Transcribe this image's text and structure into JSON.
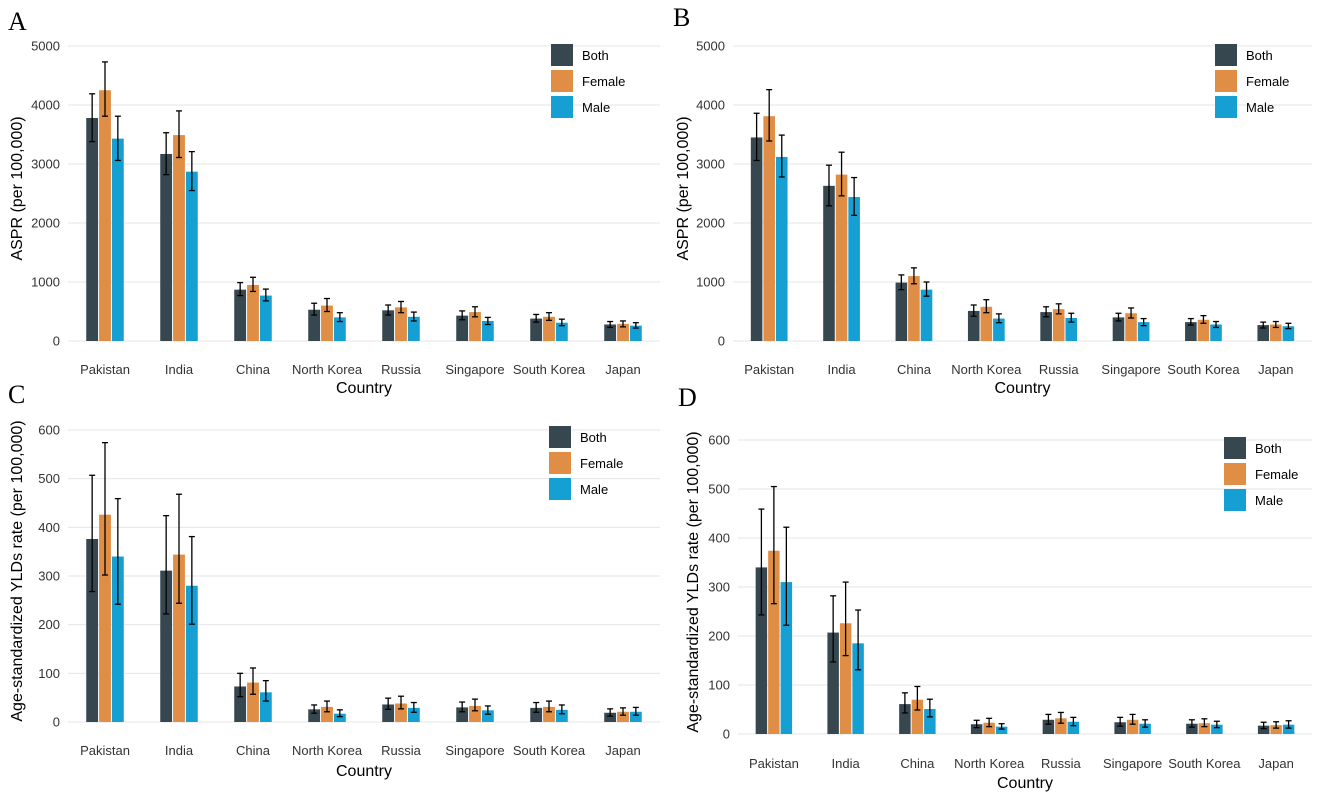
{
  "colors": {
    "Both": "#37474f",
    "Female": "#e08e45",
    "Male": "#159fd3"
  },
  "chart_data": [
    {
      "panel": "A",
      "type": "bar",
      "categories": [
        "Pakistan",
        "India",
        "China",
        "North Korea",
        "Russia",
        "Singapore",
        "South Korea",
        "Japan"
      ],
      "xlabel": "Country",
      "ylabel": "ASPR (per 100,000)",
      "ylim": [
        0,
        5000
      ],
      "yticks": [
        0,
        1000,
        2000,
        3000,
        4000,
        5000
      ],
      "legend_position": "top-right",
      "series": [
        {
          "name": "Both",
          "values": [
            3780,
            3170,
            870,
            530,
            520,
            430,
            380,
            280
          ],
          "lower": [
            3380,
            2820,
            770,
            440,
            440,
            360,
            320,
            230
          ],
          "upper": [
            4190,
            3530,
            990,
            640,
            610,
            510,
            450,
            330
          ]
        },
        {
          "name": "Female",
          "values": [
            4250,
            3490,
            950,
            600,
            570,
            490,
            410,
            290
          ],
          "lower": [
            3810,
            3110,
            840,
            500,
            480,
            410,
            350,
            240
          ],
          "upper": [
            4730,
            3900,
            1080,
            720,
            670,
            580,
            480,
            340
          ]
        },
        {
          "name": "Male",
          "values": [
            3430,
            2870,
            770,
            400,
            410,
            340,
            310,
            260
          ],
          "lower": [
            3060,
            2550,
            680,
            330,
            340,
            280,
            260,
            220
          ],
          "upper": [
            3810,
            3210,
            880,
            480,
            490,
            400,
            370,
            310
          ]
        }
      ]
    },
    {
      "panel": "B",
      "type": "bar",
      "categories": [
        "Pakistan",
        "India",
        "China",
        "North Korea",
        "Russia",
        "Singapore",
        "South Korea",
        "Japan"
      ],
      "xlabel": "Country",
      "ylabel": "ASPR (per 100,000)",
      "ylim": [
        0,
        5000
      ],
      "yticks": [
        0,
        1000,
        2000,
        3000,
        4000,
        5000
      ],
      "legend_position": "top-right",
      "series": [
        {
          "name": "Both",
          "values": [
            3450,
            2630,
            990,
            510,
            490,
            400,
            320,
            270
          ],
          "lower": [
            3060,
            2290,
            870,
            420,
            410,
            340,
            270,
            220
          ],
          "upper": [
            3860,
            2980,
            1120,
            610,
            580,
            470,
            380,
            320
          ]
        },
        {
          "name": "Female",
          "values": [
            3810,
            2820,
            1100,
            580,
            540,
            470,
            360,
            280
          ],
          "lower": [
            3390,
            2460,
            970,
            480,
            460,
            390,
            300,
            230
          ],
          "upper": [
            4260,
            3200,
            1240,
            700,
            630,
            560,
            430,
            330
          ]
        },
        {
          "name": "Male",
          "values": [
            3120,
            2440,
            870,
            380,
            390,
            320,
            280,
            250
          ],
          "lower": [
            2780,
            2130,
            760,
            310,
            320,
            260,
            230,
            210
          ],
          "upper": [
            3490,
            2770,
            1000,
            460,
            470,
            380,
            330,
            300
          ]
        }
      ]
    },
    {
      "panel": "C",
      "type": "bar",
      "categories": [
        "Pakistan",
        "India",
        "China",
        "North Korea",
        "Russia",
        "Singapore",
        "South Korea",
        "Japan"
      ],
      "xlabel": "Country",
      "ylabel": "Age-standardized YLDs rate (per 100,000)",
      "ylim": [
        0,
        600
      ],
      "yticks": [
        0,
        100,
        200,
        300,
        400,
        500,
        600
      ],
      "legend_position": "top-right",
      "series": [
        {
          "name": "Both",
          "values": [
            376,
            311,
            73,
            26,
            36,
            30,
            29,
            19
          ],
          "lower": [
            268,
            222,
            52,
            18,
            26,
            21,
            20,
            12
          ],
          "upper": [
            507,
            424,
            100,
            35,
            49,
            41,
            40,
            27
          ]
        },
        {
          "name": "Female",
          "values": [
            426,
            344,
            81,
            31,
            38,
            33,
            31,
            21
          ],
          "lower": [
            302,
            244,
            57,
            21,
            27,
            23,
            21,
            14
          ],
          "upper": [
            574,
            468,
            111,
            43,
            53,
            47,
            43,
            29
          ]
        },
        {
          "name": "Male",
          "values": [
            340,
            280,
            61,
            17,
            29,
            24,
            25,
            21
          ],
          "lower": [
            242,
            201,
            43,
            11,
            20,
            16,
            17,
            14
          ],
          "upper": [
            459,
            381,
            85,
            25,
            40,
            33,
            35,
            30
          ]
        }
      ]
    },
    {
      "panel": "D",
      "type": "bar",
      "categories": [
        "Pakistan",
        "India",
        "China",
        "North Korea",
        "Russia",
        "Singapore",
        "South Korea",
        "Japan"
      ],
      "xlabel": "Country",
      "ylabel": "Age-standardized YLDs rate (per 100,000)",
      "ylim": [
        0,
        600
      ],
      "yticks": [
        0,
        100,
        200,
        300,
        400,
        500,
        600
      ],
      "legend_position": "top-right",
      "series": [
        {
          "name": "Both",
          "values": [
            340,
            207,
            61,
            20,
            29,
            24,
            21,
            17
          ],
          "lower": [
            243,
            147,
            43,
            13,
            20,
            16,
            14,
            11
          ],
          "upper": [
            459,
            282,
            84,
            28,
            40,
            34,
            29,
            24
          ]
        },
        {
          "name": "Female",
          "values": [
            374,
            226,
            70,
            23,
            32,
            29,
            22,
            18
          ],
          "lower": [
            266,
            160,
            49,
            15,
            22,
            20,
            15,
            12
          ],
          "upper": [
            505,
            310,
            97,
            32,
            44,
            40,
            31,
            25
          ]
        },
        {
          "name": "Male",
          "values": [
            310,
            185,
            51,
            15,
            25,
            21,
            19,
            19
          ],
          "lower": [
            222,
            131,
            35,
            10,
            17,
            14,
            13,
            12
          ],
          "upper": [
            422,
            253,
            71,
            21,
            34,
            29,
            26,
            27
          ]
        }
      ]
    }
  ]
}
